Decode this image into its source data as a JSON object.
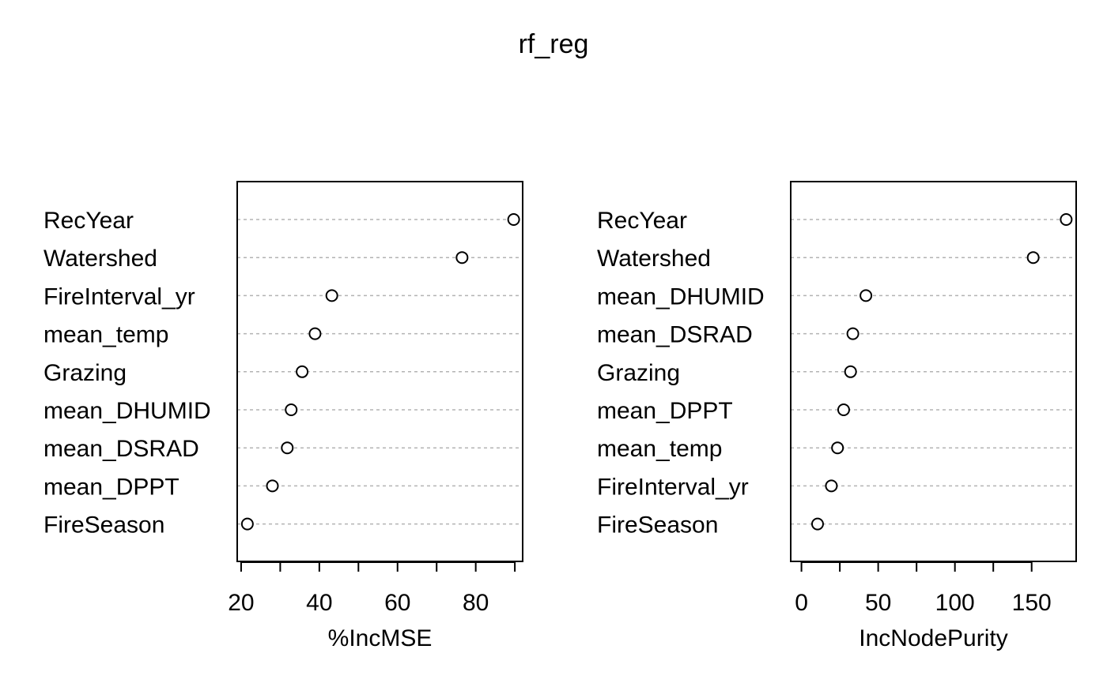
{
  "title": "rf_reg",
  "chart_data": [
    {
      "type": "scatter",
      "subtype": "dotchart",
      "xlabel": "%IncMSE",
      "ylabel": "",
      "xlim": [
        19,
        92
      ],
      "xticks": [
        20,
        30,
        40,
        50,
        60,
        70,
        80,
        90
      ],
      "xtick_labels": [
        "20",
        "",
        "40",
        "",
        "60",
        "",
        "80",
        ""
      ],
      "grid": "dotted-horizontal",
      "marker": "open-circle",
      "categories": [
        "RecYear",
        "Watershed",
        "FireInterval_yr",
        "mean_temp",
        "Grazing",
        "mean_DHUMID",
        "mean_DSRAD",
        "mean_DPPT",
        "FireSeason"
      ],
      "values": [
        89.7,
        76.5,
        43.2,
        38.9,
        35.6,
        32.8,
        31.8,
        28.0,
        21.6
      ]
    },
    {
      "type": "scatter",
      "subtype": "dotchart",
      "xlabel": "IncNodePurity",
      "ylabel": "",
      "xlim": [
        -7,
        179
      ],
      "xticks": [
        0,
        25,
        50,
        75,
        100,
        125,
        150
      ],
      "xtick_labels": [
        "0",
        "",
        "50",
        "",
        "100",
        "",
        "150"
      ],
      "grid": "dotted-horizontal",
      "marker": "open-circle",
      "categories": [
        "RecYear",
        "Watershed",
        "mean_DHUMID",
        "mean_DSRAD",
        "Grazing",
        "mean_DPPT",
        "mean_temp",
        "FireInterval_yr",
        "FireSeason"
      ],
      "values": [
        172.5,
        151.0,
        42.0,
        33.5,
        32.0,
        27.5,
        23.5,
        19.5,
        10.5
      ]
    }
  ]
}
